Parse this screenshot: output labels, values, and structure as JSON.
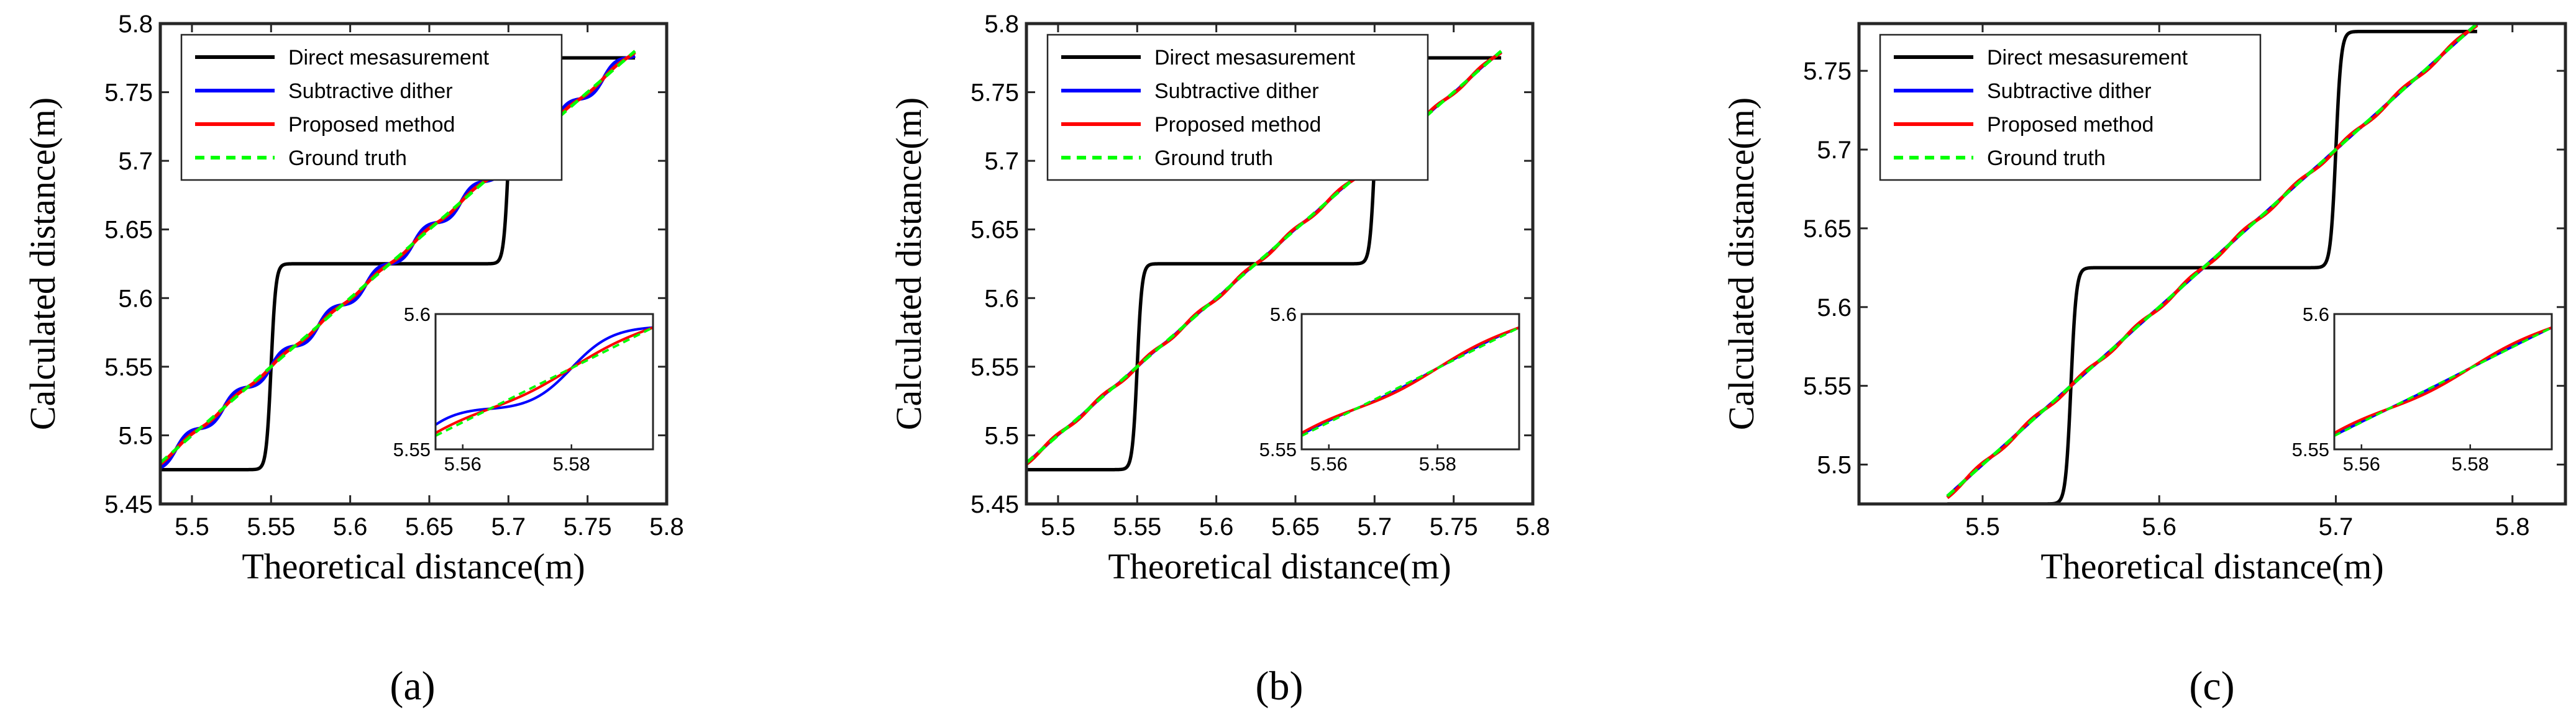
{
  "chart_data": [
    {
      "panel_label": "(a)",
      "type": "line",
      "xlabel": "Theoretical distance(m)",
      "ylabel": "Calculated distance(m)",
      "xlim": [
        5.48,
        5.8
      ],
      "ylim": [
        5.45,
        5.8
      ],
      "xticks": [
        "5.5",
        "5.55",
        "5.6",
        "5.65",
        "5.7",
        "5.75",
        "5.8"
      ],
      "yticks": [
        "5.45",
        "5.5",
        "5.55",
        "5.6",
        "5.65",
        "5.7",
        "5.75",
        "5.8"
      ],
      "legend_position": "top-left",
      "dither_step": 0.03,
      "dither_sharpness": 4,
      "series": [
        {
          "name": "Direct mesasurement",
          "color": "#000000",
          "style": "solid",
          "kind": "direct"
        },
        {
          "name": "Subtractive dither",
          "color": "#0000ff",
          "style": "solid",
          "kind": "dither"
        },
        {
          "name": "Proposed method",
          "color": "#ff0000",
          "style": "solid",
          "kind": "proposed"
        },
        {
          "name": "Ground truth",
          "color": "#00ff00",
          "style": "dashed",
          "kind": "truth"
        }
      ],
      "direct_levels": [
        5.475,
        5.625,
        5.775
      ],
      "direct_transitions": [
        5.55,
        5.7
      ],
      "x_range": [
        5.48,
        5.78
      ],
      "inset": {
        "xlim": [
          5.555,
          5.595
        ],
        "ylim": [
          5.55,
          5.6
        ],
        "xticks": [
          "5.56",
          "5.58"
        ],
        "yticks": [
          "5.55",
          "5.6"
        ],
        "position": "bottom-right"
      }
    },
    {
      "panel_label": "(b)",
      "type": "line",
      "xlabel": "Theoretical distance(m)",
      "ylabel": "Calculated distance(m)",
      "xlim": [
        5.48,
        5.8
      ],
      "ylim": [
        5.45,
        5.8
      ],
      "xticks": [
        "5.5",
        "5.55",
        "5.6",
        "5.65",
        "5.7",
        "5.75",
        "5.8"
      ],
      "yticks": [
        "5.45",
        "5.5",
        "5.55",
        "5.6",
        "5.65",
        "5.7",
        "5.75",
        "5.8"
      ],
      "legend_position": "top-left",
      "dither_step": 0.03,
      "dither_sharpness": 1.2,
      "series": [
        {
          "name": "Direct mesasurement",
          "color": "#000000",
          "style": "solid",
          "kind": "direct"
        },
        {
          "name": "Subtractive dither",
          "color": "#0000ff",
          "style": "solid",
          "kind": "dither"
        },
        {
          "name": "Proposed method",
          "color": "#ff0000",
          "style": "solid",
          "kind": "proposed"
        },
        {
          "name": "Ground truth",
          "color": "#00ff00",
          "style": "dashed",
          "kind": "truth"
        }
      ],
      "direct_levels": [
        5.475,
        5.625,
        5.775
      ],
      "direct_transitions": [
        5.55,
        5.7
      ],
      "x_range": [
        5.48,
        5.78
      ],
      "inset": {
        "xlim": [
          5.555,
          5.595
        ],
        "ylim": [
          5.55,
          5.6
        ],
        "xticks": [
          "5.56",
          "5.58"
        ],
        "yticks": [
          "5.55",
          "5.6"
        ],
        "position": "bottom-right"
      }
    },
    {
      "panel_label": "(c)",
      "type": "line",
      "xlabel": "Theoretical distance(m)",
      "ylabel": "Calculated distance(m)",
      "xlim": [
        5.43,
        5.83
      ],
      "ylim": [
        5.475,
        5.78
      ],
      "xticks": [
        "5.5",
        "5.6",
        "5.7",
        "5.8"
      ],
      "yticks": [
        "5.5",
        "5.55",
        "5.6",
        "5.65",
        "5.7",
        "5.75"
      ],
      "legend_position": "top-left",
      "dither_step": 0.03,
      "dither_sharpness": 0.6,
      "series": [
        {
          "name": "Direct mesasurement",
          "color": "#000000",
          "style": "solid",
          "kind": "direct"
        },
        {
          "name": "Subtractive dither",
          "color": "#0000ff",
          "style": "solid",
          "kind": "dither"
        },
        {
          "name": "Proposed method",
          "color": "#ff0000",
          "style": "solid",
          "kind": "proposed"
        },
        {
          "name": "Ground truth",
          "color": "#00ff00",
          "style": "dashed",
          "kind": "truth"
        }
      ],
      "direct_levels": [
        5.475,
        5.625,
        5.775
      ],
      "direct_transitions": [
        5.55,
        5.7
      ],
      "x_range": [
        5.48,
        5.78
      ],
      "inset": {
        "xlim": [
          5.555,
          5.595
        ],
        "ylim": [
          5.55,
          5.6
        ],
        "xticks": [
          "5.56",
          "5.58"
        ],
        "yticks": [
          "5.55",
          "5.6"
        ],
        "position": "bottom-right"
      }
    }
  ]
}
